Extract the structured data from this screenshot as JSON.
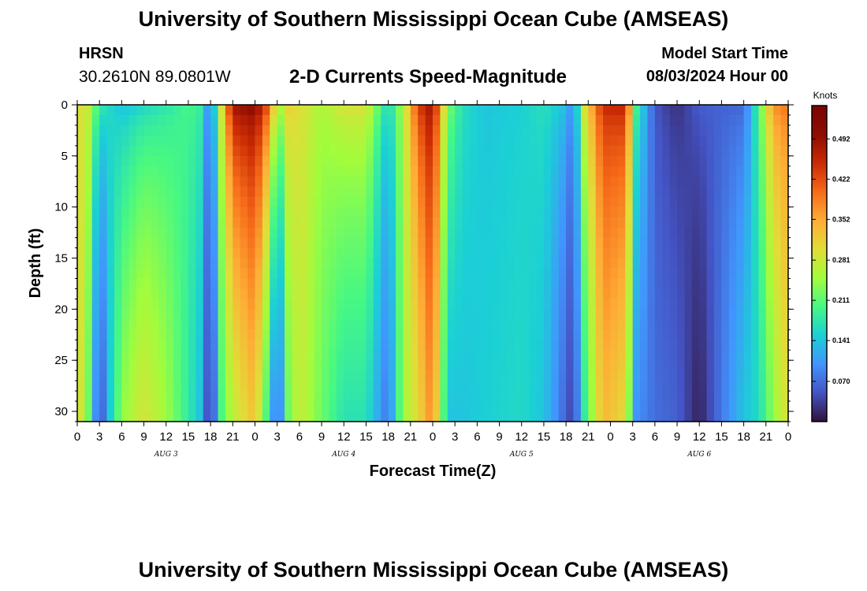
{
  "header": {
    "title": "University of Southern Mississippi Ocean Cube (AMSEAS)",
    "station": "HRSN",
    "coords": "30.2610N  89.0801W",
    "subtitle": "2-D Currents Speed-Magnitude",
    "model_label": "Model Start Time",
    "model_value": "08/03/2024 Hour 00"
  },
  "footer": {
    "title": "University of Southern Mississippi Ocean Cube (AMSEAS)"
  },
  "chart_data": {
    "type": "heatmap",
    "title": "2-D Currents Speed-Magnitude",
    "xlabel": "Forecast Time(Z)",
    "ylabel": "Depth (ft)",
    "x_tick_labels": [
      "0",
      "3",
      "6",
      "9",
      "12",
      "15",
      "18",
      "21",
      "0",
      "3",
      "6",
      "9",
      "12",
      "15",
      "18",
      "21",
      "0",
      "3",
      "6",
      "9",
      "12",
      "15",
      "18",
      "21",
      "0",
      "3",
      "6",
      "9",
      "12",
      "15",
      "18",
      "21",
      "0"
    ],
    "x_range_hours": [
      0,
      96
    ],
    "day_labels": [
      {
        "label": "AUG 3",
        "center_hour": 12
      },
      {
        "label": "AUG 4",
        "center_hour": 36
      },
      {
        "label": "AUG 5",
        "center_hour": 60
      },
      {
        "label": "AUG 6",
        "center_hour": 84
      }
    ],
    "y_ticks": [
      0,
      5,
      10,
      15,
      20,
      25,
      30
    ],
    "ylim": [
      0,
      31
    ],
    "y_inverted": true,
    "colorbar": {
      "title": "Knots",
      "ticks": [
        0.07,
        0.141,
        0.211,
        0.281,
        0.352,
        0.422,
        0.492
      ],
      "tick_labels": [
        "0.070",
        "0.141",
        "0.211",
        "0.281",
        "0.352",
        "0.422",
        "0.492"
      ],
      "range": [
        0.0,
        0.55
      ],
      "colors": [
        "#30123b",
        "#4454c4",
        "#4294fe",
        "#1bd0d5",
        "#46f884",
        "#a2fc3c",
        "#e1dd37",
        "#fead36",
        "#f66b19",
        "#ca2a04",
        "#8e0d01",
        "#7a0403"
      ]
    },
    "speed_profile_knots": [
      {
        "hour": 0,
        "top": 0.3,
        "bottom": 0.32
      },
      {
        "hour": 1.5,
        "top": 0.28,
        "bottom": 0.22
      },
      {
        "hour": 3,
        "top": 0.19,
        "bottom": 0.03
      },
      {
        "hour": 4.5,
        "top": 0.16,
        "bottom": 0.15
      },
      {
        "hour": 6,
        "top": 0.13,
        "bottom": 0.24
      },
      {
        "hour": 9,
        "top": 0.15,
        "bottom": 0.29
      },
      {
        "hour": 12,
        "top": 0.17,
        "bottom": 0.25
      },
      {
        "hour": 15,
        "top": 0.2,
        "bottom": 0.18
      },
      {
        "hour": 16.5,
        "top": 0.19,
        "bottom": 0.14
      },
      {
        "hour": 18,
        "top": 0.08,
        "bottom": 0.01
      },
      {
        "hour": 19.5,
        "top": 0.3,
        "bottom": 0.2
      },
      {
        "hour": 21,
        "top": 0.5,
        "bottom": 0.27
      },
      {
        "hour": 24,
        "top": 0.52,
        "bottom": 0.33
      },
      {
        "hour": 26,
        "top": 0.42,
        "bottom": 0.16
      },
      {
        "hour": 27,
        "top": 0.25,
        "bottom": 0.04
      },
      {
        "hour": 28.5,
        "top": 0.32,
        "bottom": 0.22
      },
      {
        "hour": 30,
        "top": 0.3,
        "bottom": 0.28
      },
      {
        "hour": 33,
        "top": 0.26,
        "bottom": 0.22
      },
      {
        "hour": 36,
        "top": 0.3,
        "bottom": 0.17
      },
      {
        "hour": 39,
        "top": 0.3,
        "bottom": 0.17
      },
      {
        "hour": 42,
        "top": 0.16,
        "bottom": 0.07
      },
      {
        "hour": 44,
        "top": 0.26,
        "bottom": 0.25
      },
      {
        "hour": 46,
        "top": 0.44,
        "bottom": 0.3
      },
      {
        "hour": 48,
        "top": 0.5,
        "bottom": 0.38
      },
      {
        "hour": 50,
        "top": 0.24,
        "bottom": 0.14
      },
      {
        "hour": 52,
        "top": 0.17,
        "bottom": 0.14
      },
      {
        "hour": 55,
        "top": 0.14,
        "bottom": 0.15
      },
      {
        "hour": 60,
        "top": 0.15,
        "bottom": 0.16
      },
      {
        "hour": 63,
        "top": 0.17,
        "bottom": 0.14
      },
      {
        "hour": 66,
        "top": 0.14,
        "bottom": 0.06
      },
      {
        "hour": 67,
        "top": 0.09,
        "bottom": 0.03
      },
      {
        "hour": 68.5,
        "top": 0.3,
        "bottom": 0.18
      },
      {
        "hour": 71,
        "top": 0.46,
        "bottom": 0.34
      },
      {
        "hour": 74,
        "top": 0.47,
        "bottom": 0.3
      },
      {
        "hour": 75.5,
        "top": 0.2,
        "bottom": 0.1
      },
      {
        "hour": 78,
        "top": 0.05,
        "bottom": 0.07
      },
      {
        "hour": 81,
        "top": 0.02,
        "bottom": 0.06
      },
      {
        "hour": 84,
        "top": 0.06,
        "bottom": 0.01
      },
      {
        "hour": 87,
        "top": 0.06,
        "bottom": 0.08
      },
      {
        "hour": 90,
        "top": 0.06,
        "bottom": 0.14
      },
      {
        "hour": 92,
        "top": 0.2,
        "bottom": 0.16
      },
      {
        "hour": 94,
        "top": 0.38,
        "bottom": 0.24
      },
      {
        "hour": 96,
        "top": 0.4,
        "bottom": 0.3
      }
    ]
  }
}
